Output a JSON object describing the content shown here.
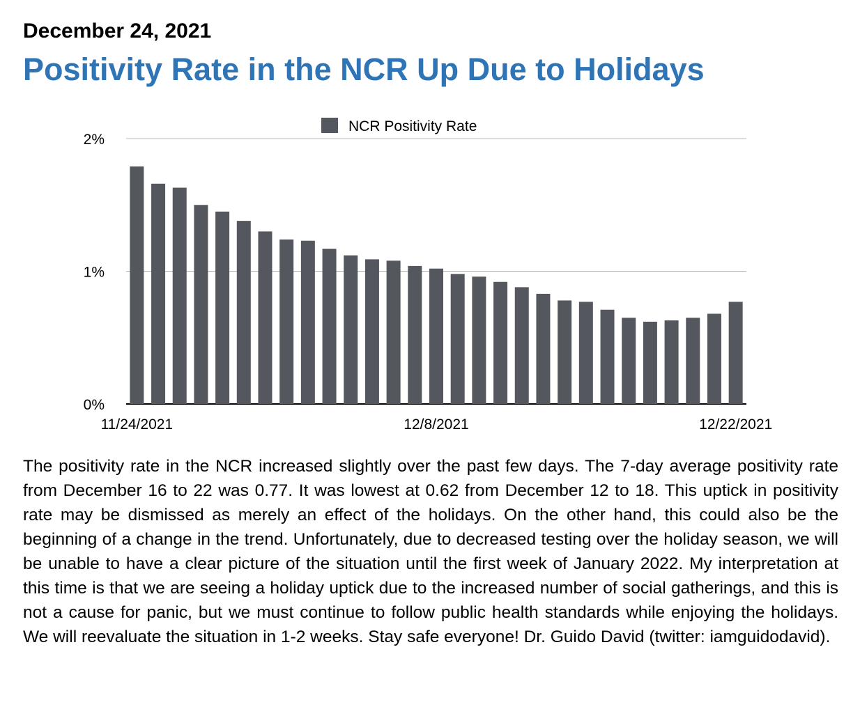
{
  "header": {
    "date": "December 24, 2021",
    "title": "Positivity Rate in the NCR Up Due to Holidays"
  },
  "colors": {
    "title": "#2f75b5",
    "bar": "#54585e",
    "grid": "#b8b8b8"
  },
  "chart_data": {
    "type": "bar",
    "title": "",
    "xlabel": "",
    "ylabel": "",
    "legend": {
      "entries": [
        "NCR Positivity Rate"
      ],
      "placement": "top"
    },
    "grid": true,
    "ylim": [
      0,
      2
    ],
    "yticks": [
      "0%",
      "1%",
      "2%"
    ],
    "xtick_labels": [
      {
        "index": 0,
        "label": "11/24/2021"
      },
      {
        "index": 14,
        "label": "12/8/2021"
      },
      {
        "index": 28,
        "label": "12/22/2021"
      }
    ],
    "x_start": "11/24/2021",
    "x_end": "12/22/2021",
    "series": [
      {
        "name": "NCR Positivity Rate",
        "values": [
          1.79,
          1.66,
          1.63,
          1.5,
          1.45,
          1.38,
          1.3,
          1.24,
          1.23,
          1.17,
          1.12,
          1.09,
          1.08,
          1.04,
          1.02,
          0.98,
          0.96,
          0.92,
          0.88,
          0.83,
          0.78,
          0.77,
          0.71,
          0.65,
          0.62,
          0.63,
          0.65,
          0.68,
          0.77
        ]
      }
    ]
  },
  "body": {
    "text": "The positivity rate in the NCR increased slightly over the past few days. The 7-day average positivity rate from December 16 to 22 was 0.77. It was lowest at 0.62 from December 12 to 18. This uptick in positivity rate may be dismissed as merely an effect of the holidays. On the other hand, this could also be the beginning of a change in the trend. Unfortunately, due to decreased testing over the holiday season, we will be unable to have a clear picture of the situation until the first week of January 2022. My interpretation at this time is that we are seeing a holiday uptick due to the increased number of social gatherings, and this is not a cause for panic, but we must continue to follow public health standards while enjoying the holidays. We will reevaluate the situation in 1-2 weeks. Stay safe everyone! Dr. Guido David (twitter: iamguidodavid)."
  }
}
